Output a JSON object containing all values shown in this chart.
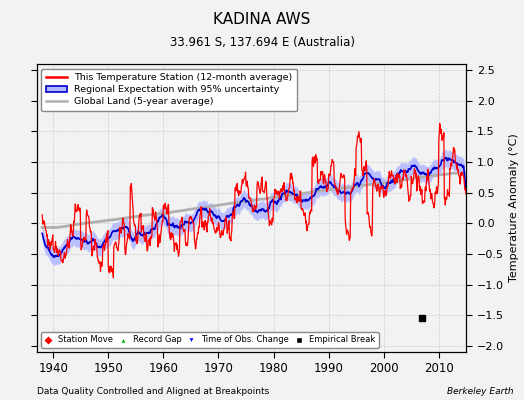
{
  "title": "KADINA AWS",
  "subtitle": "33.961 S, 137.694 E (Australia)",
  "xlabel_bottom": "Data Quality Controlled and Aligned at Breakpoints",
  "xlabel_right": "Berkeley Earth",
  "ylabel": "Temperature Anomaly (°C)",
  "ylim": [
    -2.1,
    2.6
  ],
  "yticks": [
    -2,
    -1.5,
    -1,
    -0.5,
    0,
    0.5,
    1,
    1.5,
    2,
    2.5
  ],
  "xlim": [
    1937,
    2015
  ],
  "xticks": [
    1940,
    1950,
    1960,
    1970,
    1980,
    1990,
    2000,
    2010
  ],
  "station_color": "#FF0000",
  "regional_color": "#0000CC",
  "regional_uncertainty_color": "#B0B8FF",
  "global_color": "#B0B0B0",
  "background_color": "#F2F2F2",
  "grid_color": "#CCCCCC",
  "empirical_break_year": 2007,
  "empirical_break_y": -1.55
}
